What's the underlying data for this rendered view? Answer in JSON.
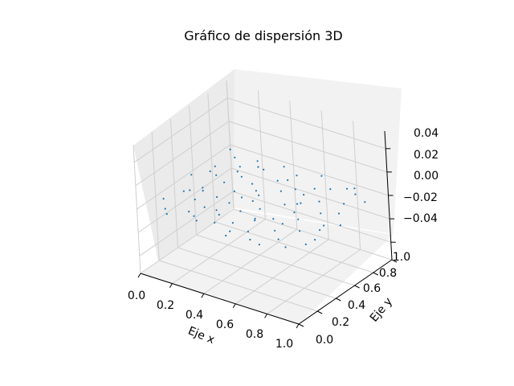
{
  "chart_data": {
    "type": "scatter",
    "title": "Gráfico de dispersión 3D",
    "xlabel": "Eje x",
    "ylabel": "Eje y",
    "zlabel": "",
    "xlim": [
      0,
      1
    ],
    "ylim": [
      0,
      1
    ],
    "zlim": [
      -0.055,
      0.055
    ],
    "x_ticks": [
      "0.0",
      "0.2",
      "0.4",
      "0.6",
      "0.8",
      "1.0"
    ],
    "y_ticks": [
      "0.0",
      "0.2",
      "0.4",
      "0.6",
      "0.8",
      "1.0"
    ],
    "z_ticks": [
      "−0.04",
      "−0.02",
      "0.00",
      "0.02",
      "0.04"
    ],
    "grid": true,
    "point_color": "#1f77b4",
    "series": [
      {
        "x": [
          0.02,
          0.05,
          0.07,
          0.09,
          0.1,
          0.12,
          0.13,
          0.15,
          0.16,
          0.18,
          0.19,
          0.21,
          0.22,
          0.24,
          0.25,
          0.27,
          0.28,
          0.3,
          0.31,
          0.33,
          0.34,
          0.36,
          0.37,
          0.39,
          0.4,
          0.42,
          0.43,
          0.45,
          0.46,
          0.48,
          0.5,
          0.51,
          0.53,
          0.55,
          0.56,
          0.58,
          0.59,
          0.61,
          0.62,
          0.64,
          0.65,
          0.67,
          0.68,
          0.7,
          0.71,
          0.73,
          0.74,
          0.76,
          0.78,
          0.8,
          0.82,
          0.84,
          0.86,
          0.88,
          0.9,
          0.92,
          0.94,
          0.96,
          0.98,
          0.03,
          0.11,
          0.2,
          0.29,
          0.38,
          0.47,
          0.57,
          0.66,
          0.75,
          0.85,
          0.95,
          0.08,
          0.17,
          0.26,
          0.35,
          0.44,
          0.54,
          0.63,
          0.72,
          0.81,
          0.91
        ],
        "y": [
          0.55,
          0.2,
          0.72,
          0.35,
          0.88,
          0.1,
          0.63,
          0.45,
          0.05,
          0.8,
          0.3,
          0.58,
          0.92,
          0.15,
          0.7,
          0.4,
          0.25,
          0.85,
          0.52,
          0.08,
          0.66,
          0.38,
          0.95,
          0.22,
          0.6,
          0.12,
          0.78,
          0.48,
          0.33,
          0.9,
          0.18,
          0.68,
          0.42,
          0.02,
          0.75,
          0.28,
          0.98,
          0.55,
          0.14,
          0.82,
          0.36,
          0.62,
          0.06,
          0.5,
          0.87,
          0.24,
          0.7,
          0.44,
          0.93,
          0.16,
          0.58,
          0.32,
          0.76,
          0.1,
          0.64,
          0.4,
          0.85,
          0.28,
          0.52,
          0.95,
          0.38,
          0.74,
          0.12,
          0.48,
          0.82,
          0.3,
          0.6,
          0.04,
          0.9,
          0.2,
          0.65,
          0.42,
          0.86,
          0.26,
          0.56,
          0.08,
          0.72,
          0.34,
          0.96,
          0.46
        ],
        "z": [
          0,
          0,
          0,
          0,
          0,
          0,
          0,
          0,
          0,
          0,
          0,
          0,
          0,
          0,
          0,
          0,
          0,
          0,
          0,
          0,
          0,
          0,
          0,
          0,
          0,
          0,
          0,
          0,
          0,
          0,
          0,
          0,
          0,
          0,
          0,
          0,
          0,
          0,
          0,
          0,
          0,
          0,
          0,
          0,
          0,
          0,
          0,
          0,
          0,
          0,
          0,
          0,
          0,
          0,
          0,
          0,
          0,
          0,
          0,
          0,
          0,
          0,
          0,
          0,
          0,
          0,
          0,
          0,
          0,
          0,
          0,
          0,
          0,
          0,
          0,
          0,
          0,
          0,
          0,
          0
        ]
      }
    ]
  }
}
